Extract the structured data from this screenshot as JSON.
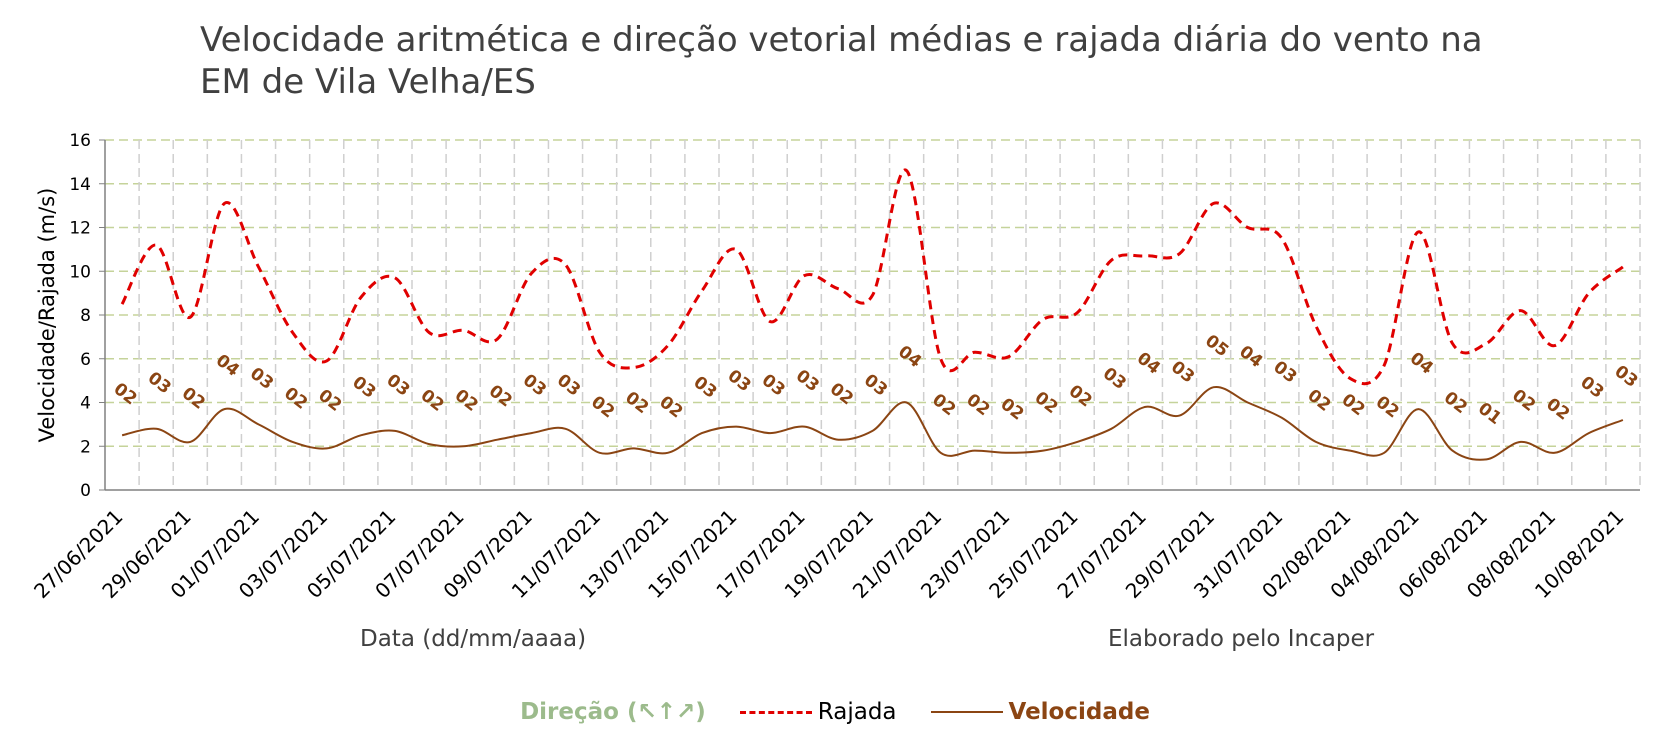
{
  "title_line1": "Velocidade aritmética e direção vetorial médias e rajada diária do vento na",
  "title_line2": "EM de Vila Velha/ES",
  "x_axis_label": "Data (dd/mm/aaaa)",
  "credit": "Elaborado pelo Incaper",
  "legend": {
    "direction": "Direção (↖↑↗)",
    "gust": "Rajada",
    "speed": "Velocidade"
  },
  "colors": {
    "gust": "#e00000",
    "speed": "#8b4513",
    "direction_labels": "#8b4513",
    "direction_legend": "#9cbb8c",
    "grid": "#c5d39a"
  },
  "chart_data": {
    "type": "line",
    "ylabel": "Velocidade/Rajada (m/s)",
    "xlabel": "Data (dd/mm/aaaa)",
    "ylim": [
      0,
      16
    ],
    "yticks": [
      0,
      2,
      4,
      6,
      8,
      10,
      12,
      14,
      16
    ],
    "grid": true,
    "legend_position": "bottom",
    "x_tick_labels": [
      "27/06/2021",
      "29/06/2021",
      "01/07/2021",
      "03/07/2021",
      "05/07/2021",
      "07/07/2021",
      "09/07/2021",
      "11/07/2021",
      "13/07/2021",
      "15/07/2021",
      "17/07/2021",
      "19/07/2021",
      "21/07/2021",
      "23/07/2021",
      "25/07/2021",
      "27/07/2021",
      "29/07/2021",
      "31/07/2021",
      "02/08/2021",
      "04/08/2021",
      "06/08/2021",
      "08/08/2021",
      "10/08/2021"
    ],
    "dates": [
      "27/06/2021",
      "28/06/2021",
      "29/06/2021",
      "30/06/2021",
      "01/07/2021",
      "02/07/2021",
      "03/07/2021",
      "04/07/2021",
      "05/07/2021",
      "06/07/2021",
      "07/07/2021",
      "08/07/2021",
      "09/07/2021",
      "10/07/2021",
      "11/07/2021",
      "12/07/2021",
      "13/07/2021",
      "14/07/2021",
      "15/07/2021",
      "16/07/2021",
      "17/07/2021",
      "18/07/2021",
      "19/07/2021",
      "20/07/2021",
      "21/07/2021",
      "22/07/2021",
      "23/07/2021",
      "24/07/2021",
      "25/07/2021",
      "26/07/2021",
      "27/07/2021",
      "28/07/2021",
      "29/07/2021",
      "30/07/2021",
      "31/07/2021",
      "01/08/2021",
      "02/08/2021",
      "03/08/2021",
      "04/08/2021",
      "05/08/2021",
      "06/08/2021",
      "07/08/2021",
      "08/08/2021",
      "09/08/2021",
      "10/08/2021"
    ],
    "series": [
      {
        "name": "Rajada",
        "style": "dashed",
        "values": [
          8.5,
          11.2,
          7.9,
          13.1,
          10.2,
          7.2,
          5.9,
          8.8,
          9.7,
          7.2,
          7.3,
          6.9,
          9.9,
          10.3,
          6.3,
          5.6,
          6.6,
          9.1,
          11.0,
          7.7,
          9.8,
          9.2,
          8.9,
          14.6,
          6.0,
          6.3,
          6.1,
          7.8,
          8.1,
          10.5,
          10.7,
          10.8,
          13.1,
          12.0,
          11.5,
          7.5,
          5.1,
          5.7,
          11.8,
          6.7,
          6.7,
          8.2,
          6.6,
          9.0,
          10.2
        ]
      },
      {
        "name": "Velocidade",
        "style": "solid",
        "values": [
          2.5,
          2.8,
          2.2,
          3.7,
          3.0,
          2.2,
          1.9,
          2.5,
          2.7,
          2.1,
          2.0,
          2.3,
          2.6,
          2.8,
          1.7,
          1.9,
          1.7,
          2.6,
          2.9,
          2.6,
          2.9,
          2.3,
          2.7,
          4.0,
          1.7,
          1.8,
          1.7,
          1.8,
          2.2,
          2.8,
          3.8,
          3.4,
          4.7,
          4.0,
          3.3,
          2.2,
          1.8,
          1.7,
          3.7,
          1.8,
          1.4,
          2.2,
          1.7,
          2.6,
          3.2
        ]
      }
    ],
    "direction_labels": [
      "02",
      "03",
      "02",
      "04",
      "03",
      "02",
      "02",
      "03",
      "03",
      "02",
      "02",
      "02",
      "03",
      "03",
      "02",
      "02",
      "02",
      "03",
      "03",
      "03",
      "03",
      "02",
      "03",
      "04",
      "02",
      "02",
      "02",
      "02",
      "02",
      "03",
      "04",
      "03",
      "05",
      "04",
      "03",
      "02",
      "02",
      "02",
      "04",
      "02",
      "01",
      "02",
      "02",
      "03",
      "03"
    ],
    "direction_label_y": [
      4.2,
      4.7,
      4.0,
      5.5,
      4.9,
      4.0,
      3.9,
      4.5,
      4.6,
      3.9,
      3.9,
      4.1,
      4.6,
      4.6,
      3.6,
      3.8,
      3.6,
      4.5,
      4.8,
      4.6,
      4.8,
      4.2,
      4.6,
      5.9,
      3.7,
      3.7,
      3.5,
      3.8,
      4.1,
      4.9,
      5.6,
      5.2,
      6.4,
      5.9,
      5.2,
      3.9,
      3.7,
      3.6,
      5.6,
      3.8,
      3.3,
      3.9,
      3.5,
      4.5,
      5.0
    ]
  }
}
